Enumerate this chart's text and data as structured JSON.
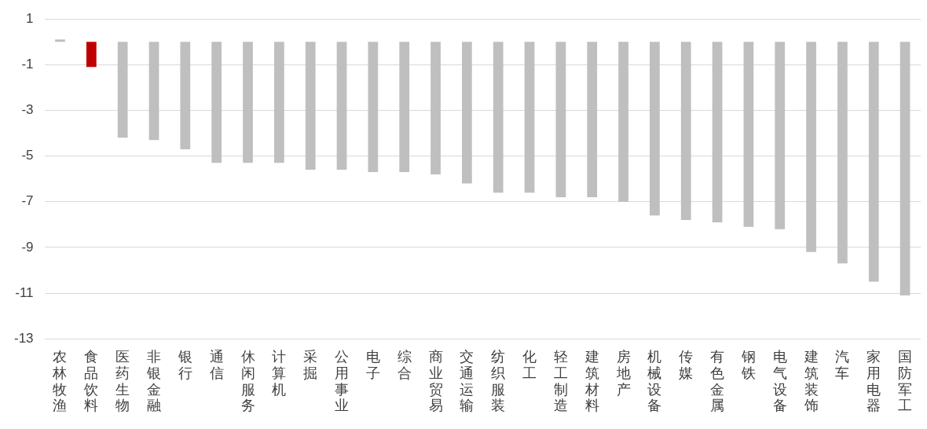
{
  "chart_data": {
    "type": "bar",
    "categories": [
      "农林牧渔",
      "食品饮料",
      "医药生物",
      "非银金融",
      "银行",
      "通信",
      "休闲服务",
      "计算机",
      "采掘",
      "公用事业",
      "电子",
      "综合",
      "商业贸易",
      "交通运输",
      "纺织服装",
      "化工",
      "轻工制造",
      "建筑材料",
      "房地产",
      "机械设备",
      "传媒",
      "有色金属",
      "钢铁",
      "电气设备",
      "建筑装饰",
      "汽车",
      "家用电器",
      "国防军工"
    ],
    "values": [
      0.1,
      -1.1,
      -4.2,
      -4.3,
      -4.7,
      -5.3,
      -5.3,
      -5.3,
      -5.6,
      -5.6,
      -5.7,
      -5.7,
      -5.8,
      -6.2,
      -6.6,
      -6.6,
      -6.8,
      -6.8,
      -7.0,
      -7.6,
      -7.8,
      -7.9,
      -8.1,
      -8.2,
      -9.2,
      -9.7,
      -10.5,
      -11.1
    ],
    "colors": [
      "#bfbfbf",
      "#c00000",
      "#bfbfbf",
      "#bfbfbf",
      "#bfbfbf",
      "#bfbfbf",
      "#bfbfbf",
      "#bfbfbf",
      "#bfbfbf",
      "#bfbfbf",
      "#bfbfbf",
      "#bfbfbf",
      "#bfbfbf",
      "#bfbfbf",
      "#bfbfbf",
      "#bfbfbf",
      "#bfbfbf",
      "#bfbfbf",
      "#bfbfbf",
      "#bfbfbf",
      "#bfbfbf",
      "#bfbfbf",
      "#bfbfbf",
      "#bfbfbf",
      "#bfbfbf",
      "#bfbfbf",
      "#bfbfbf",
      "#bfbfbf"
    ],
    "ylim": [
      -13,
      1
    ],
    "yticks": [
      -13,
      -11,
      -9,
      -7,
      -5,
      -3,
      -1,
      1
    ],
    "grid": "y",
    "legend": false
  }
}
